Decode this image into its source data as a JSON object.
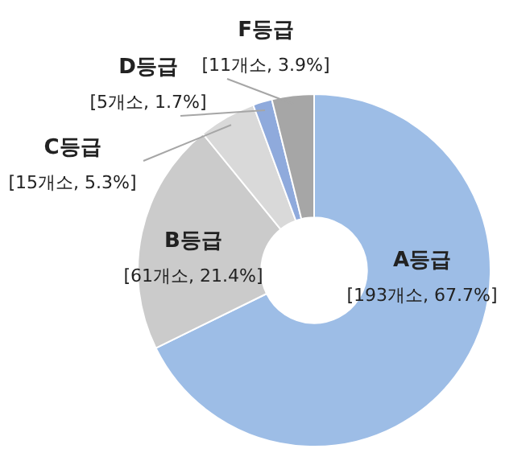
{
  "chart_data": {
    "type": "donut",
    "categories": [
      "A등급",
      "B등급",
      "C등급",
      "D등급",
      "F등급"
    ],
    "values": [
      193,
      61,
      15,
      5,
      11
    ],
    "colors": [
      "#9dbde6",
      "#cbcbcb",
      "#d9d9d9",
      "#8faadc",
      "#a6a6a6"
    ],
    "value_labels": [
      "[193개소, 67.7%]",
      "[61개소, 21.4%]",
      "[15개소, 5.3%]",
      "[5개소, 1.7%]",
      "[11개소, 3.9%]"
    ],
    "legend": false
  }
}
